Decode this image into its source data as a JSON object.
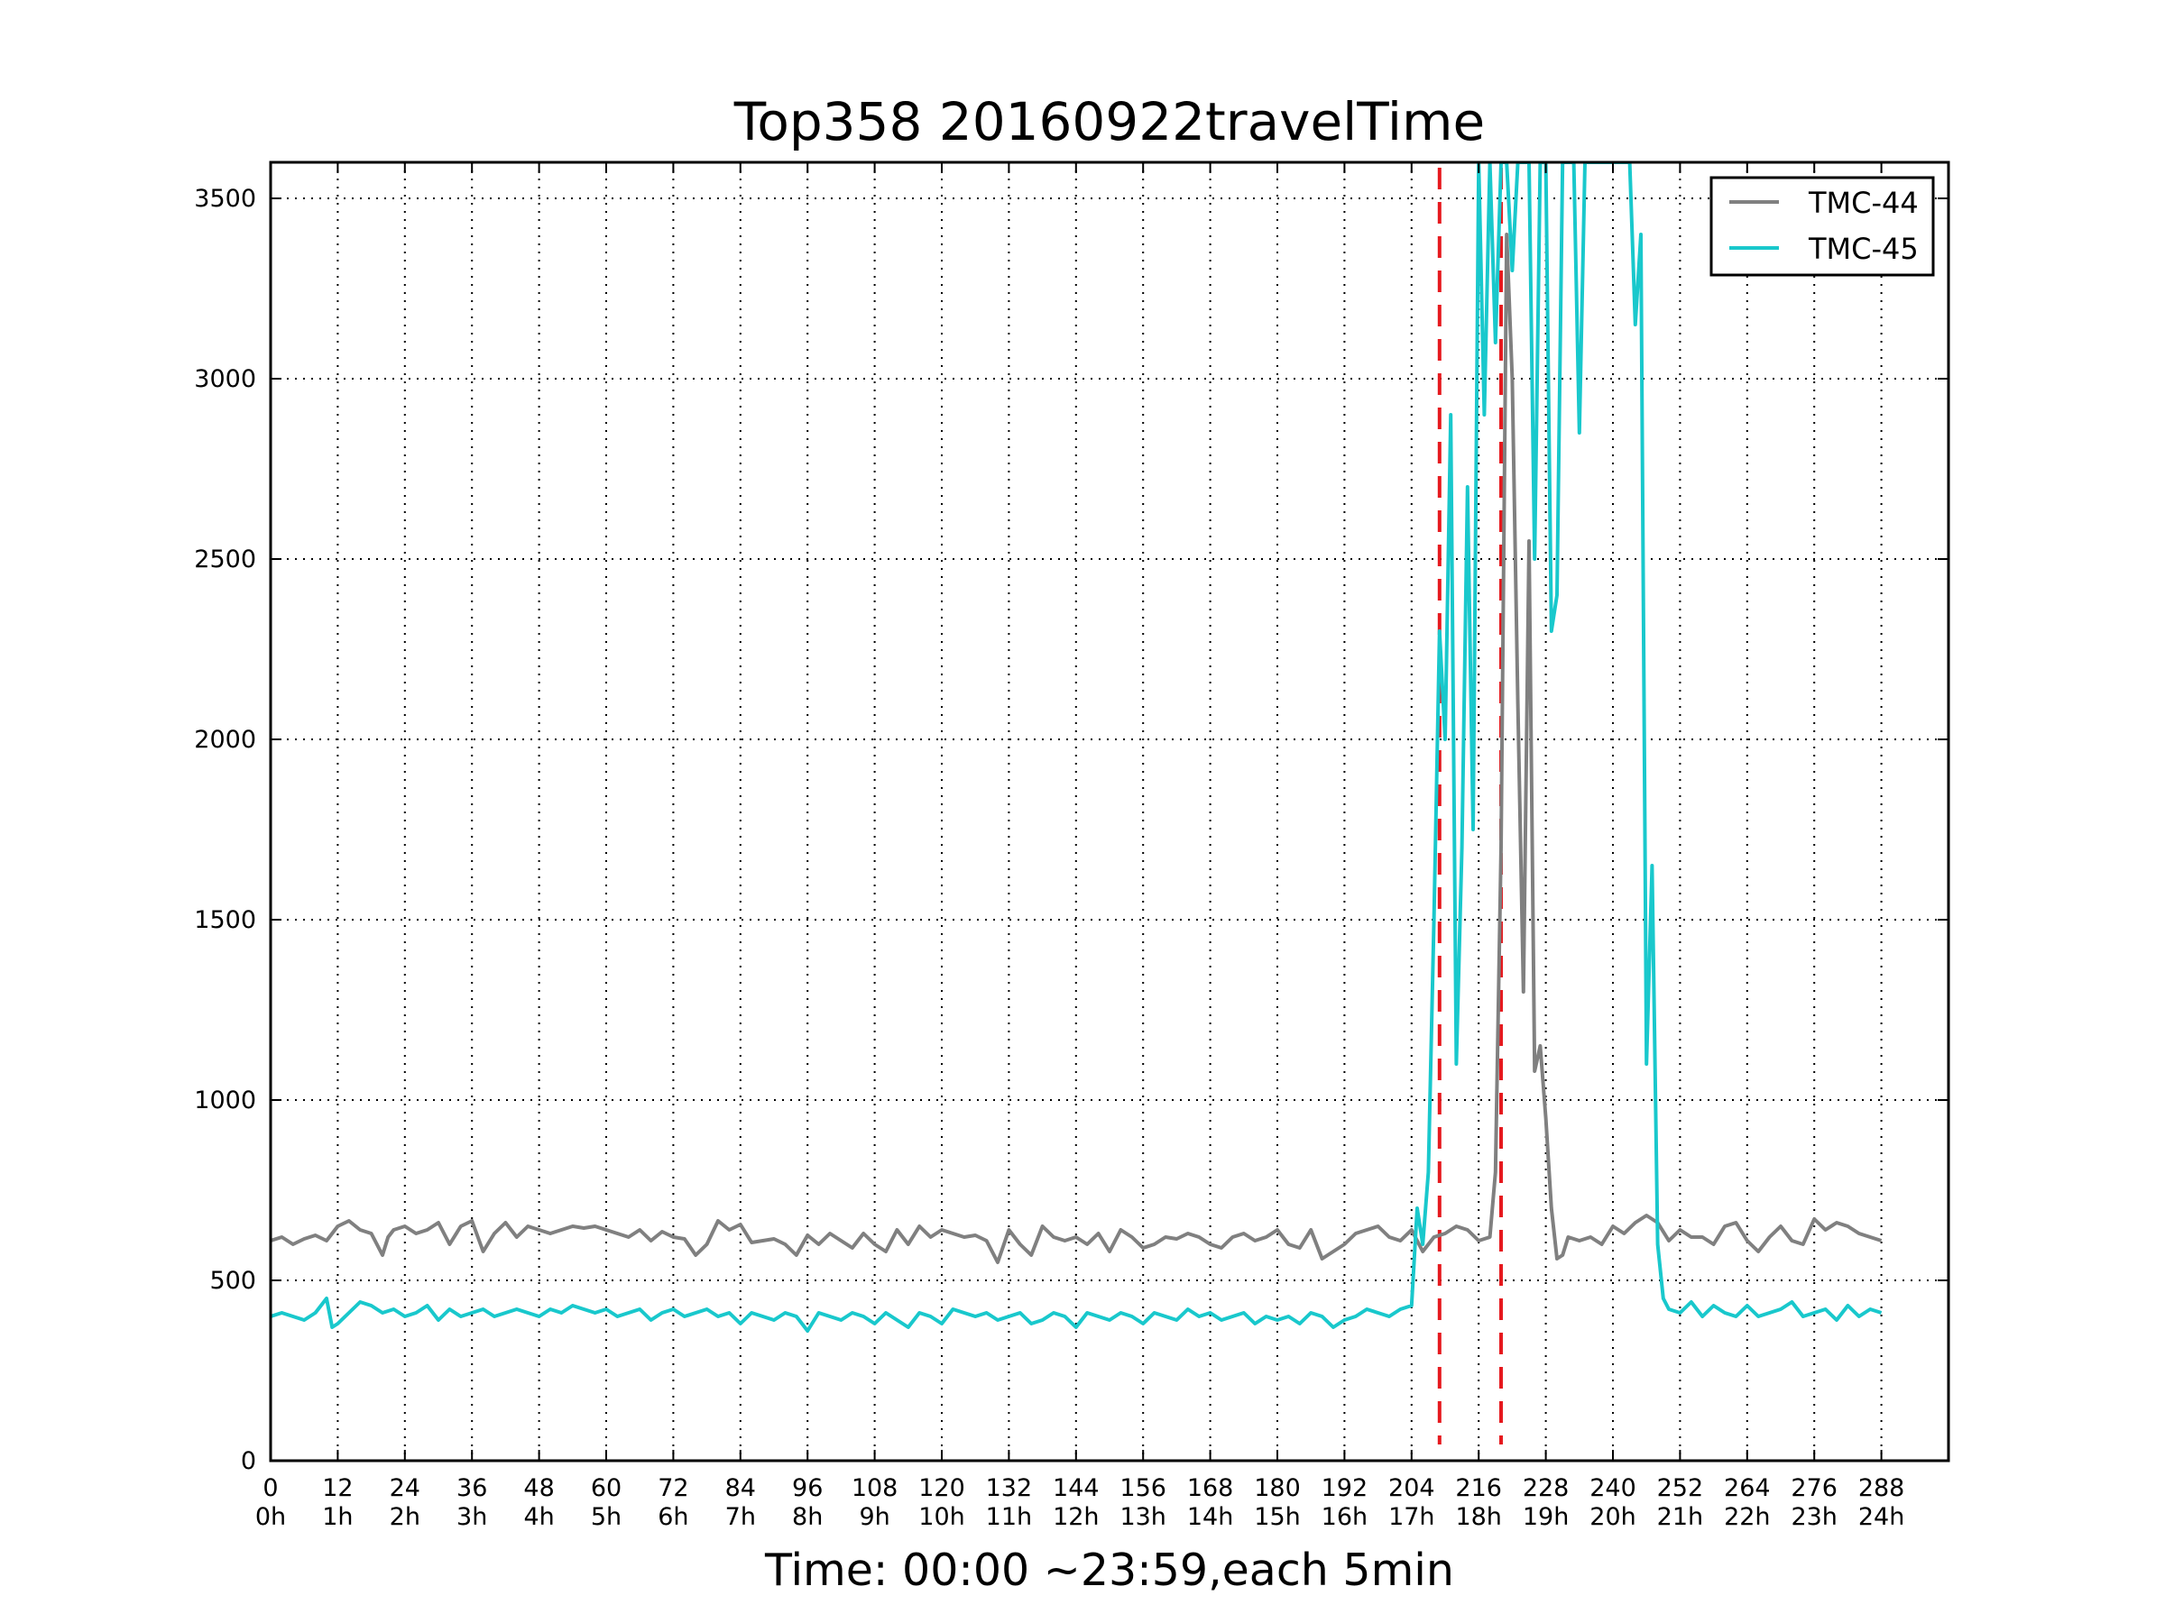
{
  "chart_data": {
    "type": "line",
    "title": "Top358 20160922travelTime",
    "xlabel": "Time: 00:00 ~23:59,each 5min",
    "ylabel": "",
    "xlim": [
      0,
      300
    ],
    "ylim": [
      0,
      3600
    ],
    "grid": true,
    "legend_position": "top-right",
    "y_ticks": [
      0,
      500,
      1000,
      1500,
      2000,
      2500,
      3000,
      3500
    ],
    "y_tick_labels": [
      "0",
      "500",
      "1000",
      "1500",
      "2000",
      "2500",
      "3000",
      "3500"
    ],
    "x_ticks": [
      0,
      12,
      24,
      36,
      48,
      60,
      72,
      84,
      96,
      108,
      120,
      132,
      144,
      156,
      168,
      180,
      192,
      204,
      216,
      228,
      240,
      252,
      264,
      276,
      288
    ],
    "x_tick_labels": [
      "0",
      "12",
      "24",
      "36",
      "48",
      "60",
      "72",
      "84",
      "96",
      "108",
      "120",
      "132",
      "144",
      "156",
      "168",
      "180",
      "192",
      "204",
      "216",
      "228",
      "240",
      "252",
      "264",
      "276",
      "288"
    ],
    "x_tick_labels_2": [
      "0h",
      "1h",
      "2h",
      "3h",
      "4h",
      "5h",
      "6h",
      "7h",
      "8h",
      "9h",
      "10h",
      "11h",
      "12h",
      "13h",
      "14h",
      "15h",
      "16h",
      "17h",
      "18h",
      "19h",
      "20h",
      "21h",
      "22h",
      "23h",
      "24h"
    ],
    "vlines": [
      {
        "x": 209,
        "color": "#e6191e",
        "style": "dashed"
      },
      {
        "x": 220,
        "color": "#e6191e",
        "style": "dashed"
      }
    ],
    "series": [
      {
        "name": "TMC-44",
        "color": "#808080",
        "x": [
          0,
          2,
          4,
          6,
          8,
          10,
          12,
          14,
          16,
          18,
          20,
          21,
          22,
          24,
          26,
          28,
          30,
          32,
          34,
          36,
          38,
          40,
          42,
          44,
          46,
          48,
          50,
          52,
          54,
          56,
          58,
          60,
          62,
          64,
          66,
          68,
          70,
          72,
          74,
          76,
          78,
          80,
          82,
          84,
          86,
          88,
          90,
          92,
          94,
          96,
          98,
          100,
          102,
          104,
          106,
          108,
          110,
          112,
          114,
          116,
          118,
          120,
          122,
          124,
          126,
          128,
          130,
          132,
          134,
          136,
          138,
          140,
          142,
          144,
          146,
          148,
          150,
          152,
          154,
          156,
          158,
          160,
          162,
          164,
          166,
          168,
          170,
          172,
          174,
          176,
          178,
          180,
          182,
          184,
          186,
          188,
          190,
          192,
          194,
          196,
          198,
          200,
          202,
          204,
          206,
          208,
          210,
          212,
          214,
          216,
          218,
          219,
          220,
          221,
          222,
          223,
          224,
          225,
          226,
          227,
          228,
          229,
          230,
          231,
          232,
          234,
          236,
          238,
          240,
          242,
          244,
          246,
          248,
          250,
          252,
          254,
          256,
          258,
          260,
          262,
          264,
          266,
          268,
          270,
          272,
          274,
          276,
          278,
          280,
          282,
          284,
          286,
          288
        ],
        "values": [
          610,
          620,
          600,
          615,
          625,
          610,
          650,
          665,
          640,
          630,
          570,
          620,
          640,
          650,
          630,
          640,
          660,
          600,
          650,
          665,
          580,
          630,
          660,
          620,
          650,
          640,
          630,
          640,
          650,
          645,
          650,
          640,
          630,
          620,
          640,
          610,
          635,
          620,
          615,
          570,
          600,
          665,
          640,
          655,
          605,
          610,
          615,
          600,
          570,
          625,
          600,
          630,
          610,
          590,
          630,
          600,
          580,
          640,
          600,
          650,
          620,
          640,
          630,
          620,
          625,
          610,
          550,
          640,
          600,
          570,
          650,
          620,
          610,
          620,
          600,
          630,
          580,
          640,
          620,
          590,
          600,
          620,
          615,
          630,
          620,
          600,
          590,
          620,
          630,
          610,
          620,
          640,
          600,
          590,
          640,
          560,
          580,
          600,
          630,
          640,
          650,
          620,
          610,
          640,
          580,
          620,
          630,
          650,
          640,
          610,
          620,
          800,
          1700,
          3400,
          3000,
          2100,
          1300,
          2550,
          1080,
          1150,
          950,
          700,
          560,
          570,
          620,
          610,
          620,
          600,
          650,
          630,
          660,
          680,
          660,
          610,
          640,
          620,
          620,
          600,
          650,
          660,
          610,
          580,
          620,
          650,
          610,
          600,
          670,
          640,
          660,
          650,
          630,
          620,
          610
        ]
      },
      {
        "name": "TMC-45",
        "color": "#19c8cc",
        "x": [
          0,
          2,
          4,
          6,
          8,
          10,
          11,
          12,
          14,
          16,
          18,
          20,
          22,
          24,
          26,
          28,
          30,
          32,
          34,
          36,
          38,
          40,
          42,
          44,
          46,
          48,
          50,
          52,
          54,
          56,
          58,
          60,
          62,
          64,
          66,
          68,
          70,
          72,
          74,
          76,
          78,
          80,
          82,
          84,
          86,
          88,
          90,
          92,
          94,
          96,
          98,
          100,
          102,
          104,
          106,
          108,
          110,
          112,
          114,
          116,
          118,
          120,
          122,
          124,
          126,
          128,
          130,
          132,
          134,
          136,
          138,
          140,
          142,
          144,
          146,
          148,
          150,
          152,
          154,
          156,
          158,
          160,
          162,
          164,
          166,
          168,
          170,
          172,
          174,
          176,
          178,
          180,
          182,
          184,
          186,
          188,
          190,
          192,
          194,
          196,
          198,
          200,
          202,
          204,
          205,
          206,
          207,
          208,
          209,
          210,
          211,
          212,
          213,
          214,
          215,
          216,
          217,
          218,
          219,
          220,
          221,
          222,
          223,
          224,
          225,
          226,
          227,
          228,
          229,
          230,
          231,
          232,
          233,
          234,
          235,
          236,
          237,
          238,
          239,
          240,
          241,
          242,
          243,
          244,
          245,
          246,
          247,
          248,
          249,
          250,
          252,
          254,
          256,
          258,
          260,
          262,
          264,
          266,
          268,
          270,
          272,
          274,
          276,
          278,
          280,
          282,
          284,
          286,
          288
        ],
        "values": [
          400,
          410,
          400,
          390,
          410,
          450,
          370,
          380,
          410,
          440,
          430,
          410,
          420,
          400,
          410,
          430,
          390,
          420,
          400,
          410,
          420,
          400,
          410,
          420,
          410,
          400,
          420,
          410,
          430,
          420,
          410,
          420,
          400,
          410,
          420,
          390,
          410,
          420,
          400,
          410,
          420,
          400,
          410,
          380,
          410,
          400,
          390,
          410,
          400,
          360,
          410,
          400,
          390,
          410,
          400,
          380,
          410,
          390,
          370,
          410,
          400,
          380,
          420,
          410,
          400,
          410,
          390,
          400,
          410,
          380,
          390,
          410,
          400,
          370,
          410,
          400,
          390,
          410,
          400,
          380,
          410,
          400,
          390,
          420,
          400,
          410,
          390,
          400,
          410,
          380,
          400,
          390,
          400,
          380,
          410,
          400,
          370,
          390,
          400,
          420,
          410,
          400,
          420,
          430,
          700,
          600,
          800,
          1500,
          2300,
          2000,
          2900,
          1100,
          1700,
          2700,
          1750,
          3600,
          2900,
          3600,
          3100,
          3600,
          3600,
          3300,
          3600,
          3600,
          3600,
          2500,
          3600,
          3600,
          2300,
          2400,
          3600,
          3600,
          3600,
          2850,
          3600,
          3600,
          3600,
          3600,
          3600,
          3600,
          3600,
          3600,
          3600,
          3150,
          3400,
          1100,
          1650,
          600,
          450,
          420,
          410,
          440,
          400,
          430,
          410,
          400,
          430,
          400,
          410,
          420,
          440,
          400,
          410,
          420,
          390,
          430,
          400,
          420,
          410
        ]
      }
    ]
  }
}
